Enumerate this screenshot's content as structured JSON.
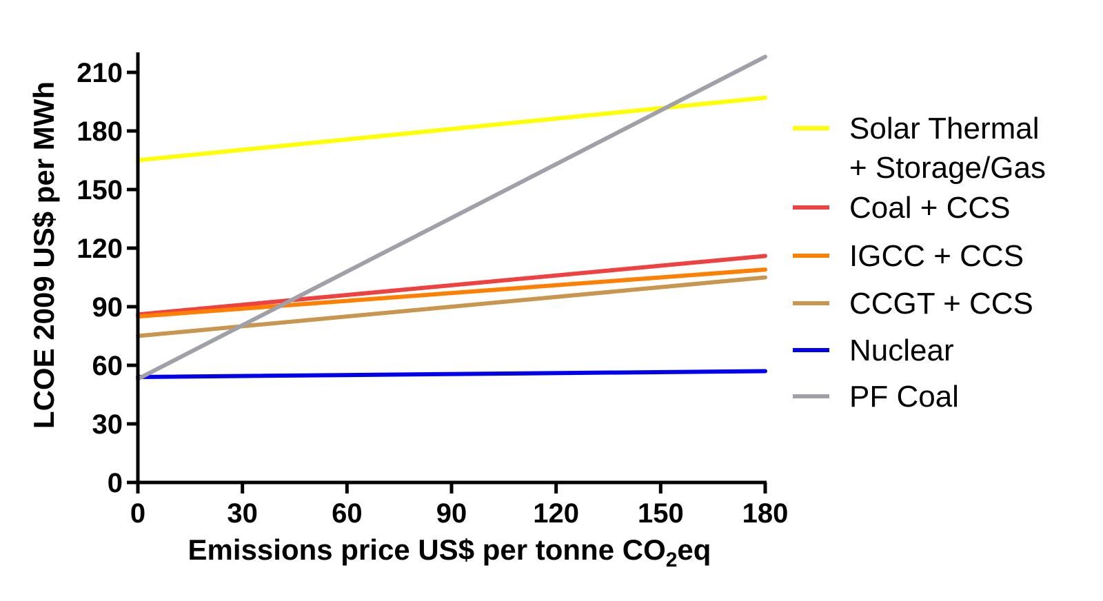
{
  "chart_data": {
    "type": "line",
    "xlabel": {
      "main": "Emissions price US$ per tonne CO",
      "sub": "2",
      "suffix": "eq"
    },
    "ylabel": "LCOE 2009 US$ per  MWh",
    "xlim": [
      0,
      180
    ],
    "ylim": [
      0,
      215
    ],
    "x_ticks": [
      0,
      30,
      60,
      90,
      120,
      150,
      180
    ],
    "y_ticks": [
      0,
      30,
      60,
      90,
      120,
      150,
      180,
      210
    ],
    "x_tick_labels": [
      "0",
      "30",
      "60",
      "90",
      "120",
      "150",
      "180"
    ],
    "y_tick_labels": [
      "0",
      "30",
      "60",
      "90",
      "120",
      "150",
      "180",
      "210"
    ],
    "grid": false,
    "legend_position": "right",
    "series": [
      {
        "name": "Solar Thermal",
        "name_line2": "+ Storage/Gas",
        "color": "#ffff00",
        "x": [
          0,
          180
        ],
        "values": [
          165,
          197
        ]
      },
      {
        "name": "Coal + CCS",
        "color": "#f04040",
        "x": [
          0,
          180
        ],
        "values": [
          86,
          116
        ]
      },
      {
        "name": "IGCC + CCS",
        "color": "#ff8000",
        "x": [
          0,
          180
        ],
        "values": [
          85,
          109
        ]
      },
      {
        "name": "CCGT + CCS",
        "color": "#c8964f",
        "x": [
          0,
          180
        ],
        "values": [
          75,
          105
        ]
      },
      {
        "name": "Nuclear",
        "color": "#0000ee",
        "x": [
          0,
          180
        ],
        "values": [
          54,
          57
        ]
      },
      {
        "name": "PF Coal",
        "color": "#a0a0a8",
        "x": [
          0,
          180
        ],
        "values": [
          53,
          218
        ]
      }
    ]
  }
}
